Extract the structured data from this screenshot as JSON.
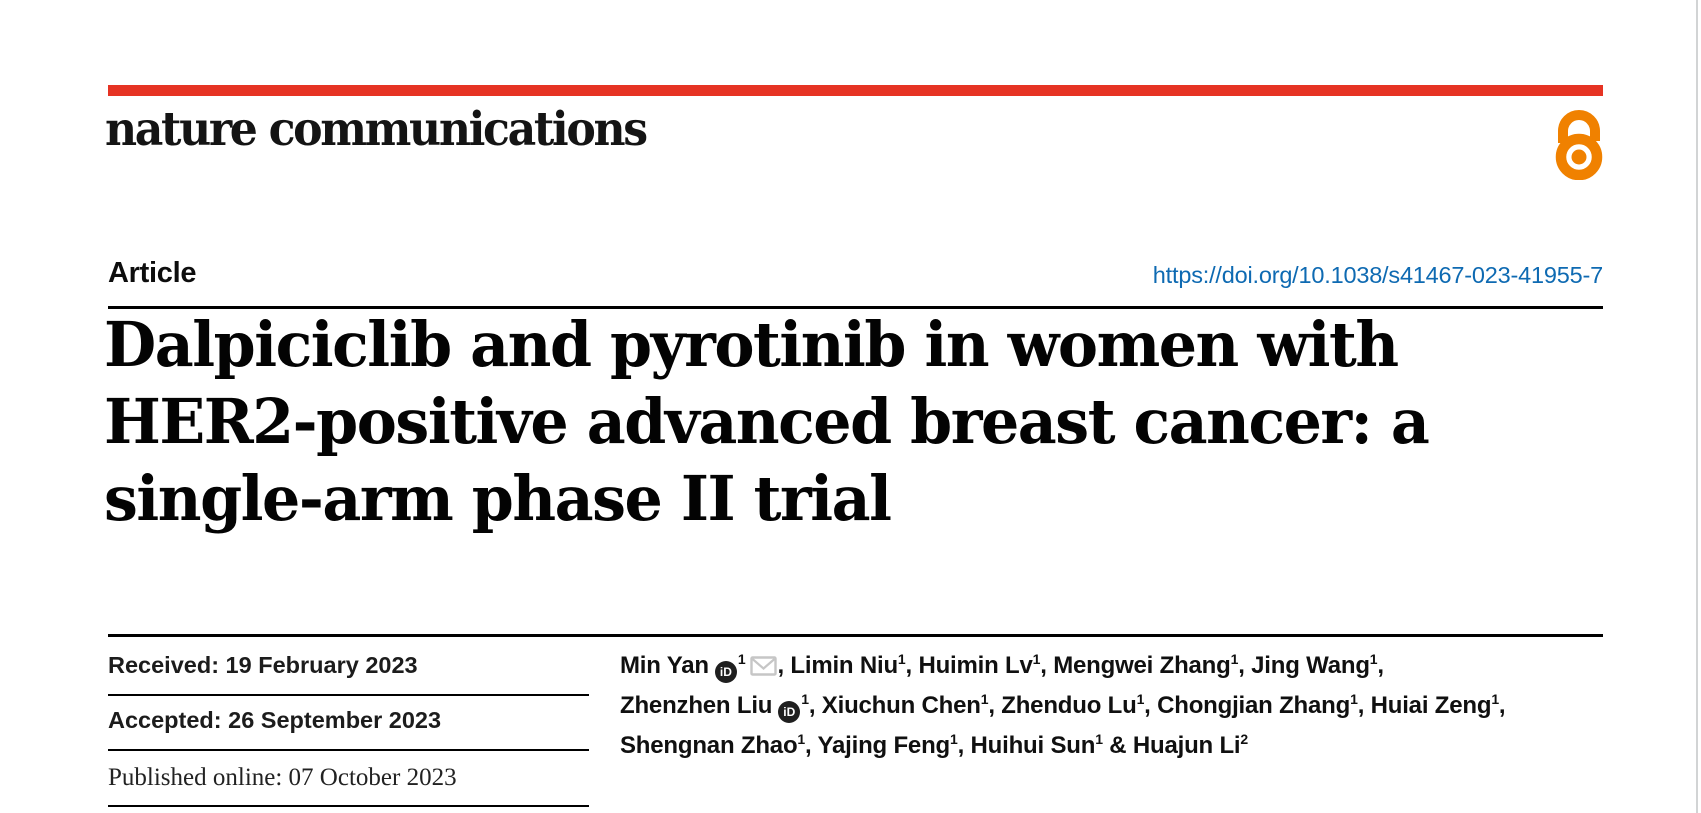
{
  "colors": {
    "accent_red": "#e63323",
    "link_blue": "#0e6ab2",
    "oa_orange": "#f08100",
    "rule_black": "#000000",
    "envelope_gray": "#c6c6c6",
    "orcid_dark": "#1f1f1f"
  },
  "masthead": {
    "journal_name": "nature communications"
  },
  "article_header": {
    "type_label": "Article",
    "doi_url": "https://doi.org/10.1038/s41467-023-41955-7"
  },
  "title": {
    "line1": "Dalpiciclib and pyrotinib in women with",
    "line2": "HER2-positive advanced breast cancer: a",
    "line3": "single-arm phase II trial"
  },
  "dates": {
    "received": "Received: 19 February 2023",
    "accepted": "Accepted: 26 September 2023",
    "published": "Published online: 07 October 2023"
  },
  "authors": {
    "orcid_icon_label": "iD",
    "lines": [
      [
        {
          "name": "Min Yan",
          "orcid": true,
          "sup": "1",
          "email": true,
          "sep": ", "
        },
        {
          "name": "Limin Niu",
          "sup": "1",
          "sep": ", "
        },
        {
          "name": "Huimin Lv",
          "sup": "1",
          "sep": ", "
        },
        {
          "name": "Mengwei Zhang",
          "sup": "1",
          "sep": ", "
        },
        {
          "name": "Jing Wang",
          "sup": "1",
          "sep": ","
        }
      ],
      [
        {
          "name": "Zhenzhen Liu",
          "orcid": true,
          "sup": "1",
          "sep": ", "
        },
        {
          "name": "Xiuchun Chen",
          "sup": "1",
          "sep": ", "
        },
        {
          "name": "Zhenduo Lu",
          "sup": "1",
          "sep": ", "
        },
        {
          "name": "Chongjian Zhang",
          "sup": "1",
          "sep": ", "
        },
        {
          "name": "Huiai Zeng",
          "sup": "1",
          "sep": ","
        }
      ],
      [
        {
          "name": "Shengnan Zhao",
          "sup": "1",
          "sep": ", "
        },
        {
          "name": "Yajing Feng",
          "sup": "1",
          "sep": ", "
        },
        {
          "name": "Huihui Sun",
          "sup": "1",
          "sep": " & "
        },
        {
          "name": "Huajun Li",
          "sup": "2",
          "sep": ""
        }
      ]
    ]
  }
}
